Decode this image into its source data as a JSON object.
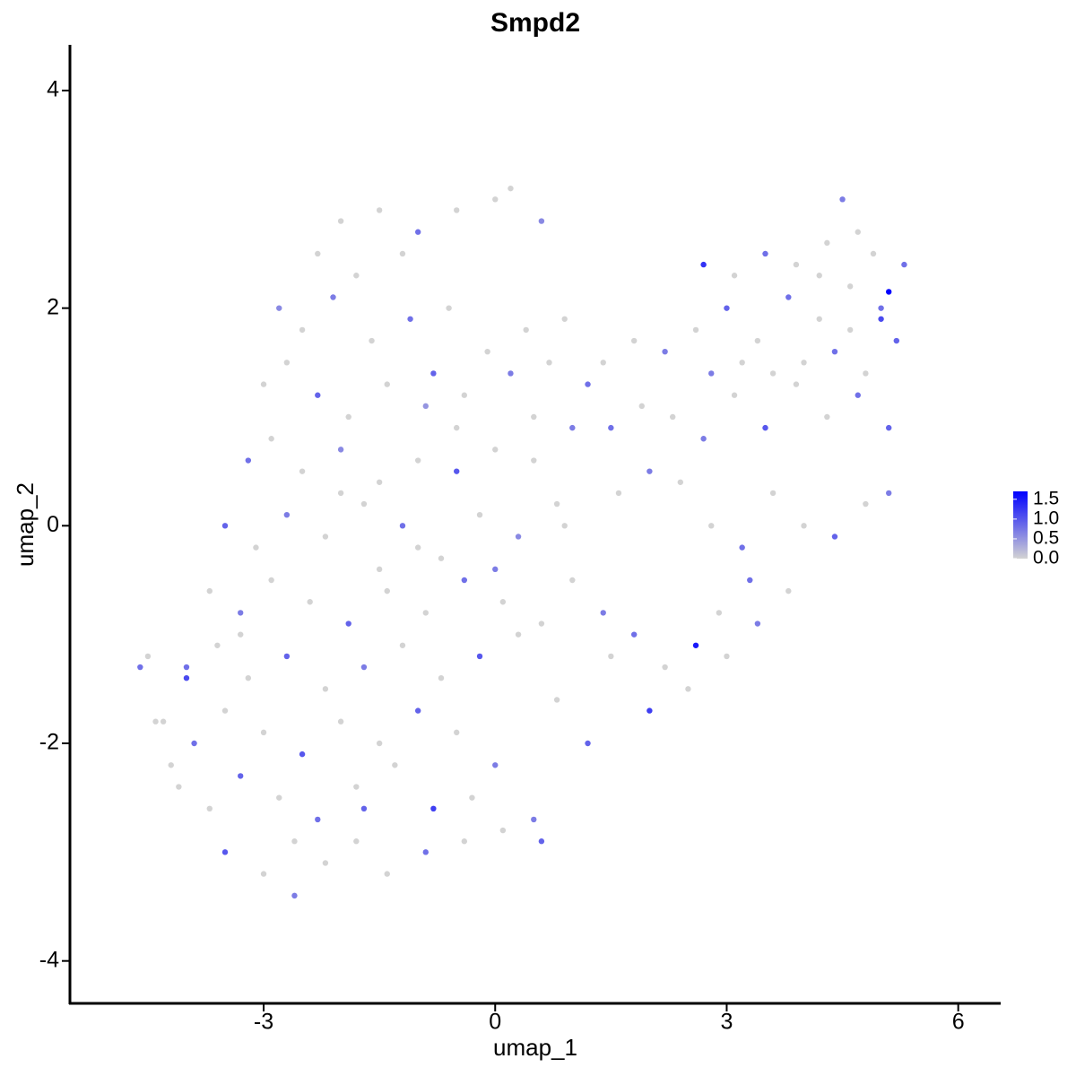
{
  "chart_data": {
    "type": "scatter",
    "title": "Smpd2",
    "x_label": "umap_1",
    "y_label": "umap_2",
    "xlim": [
      -5.51,
      6.55
    ],
    "ylim": [
      -4.39,
      4.42
    ],
    "xticks": [
      -3,
      0,
      3,
      6
    ],
    "yticks": [
      -4,
      -2,
      0,
      2,
      4
    ],
    "low_color": "#d3d3d3",
    "high_color": "#0000ff",
    "colorbar": {
      "lim": [
        0,
        1.7
      ],
      "ticks": [
        {
          "value": 0,
          "label": "0.0"
        },
        {
          "value": 0.5,
          "label": "0.5"
        },
        {
          "value": 1.0,
          "label": "1.0"
        },
        {
          "value": 1.5,
          "label": "1.5"
        }
      ]
    },
    "x": [
      -2.3,
      -2.0,
      -1.5,
      -1.0,
      -0.5,
      0.0,
      0.2,
      0.6,
      -1.8,
      -1.2,
      -2.8,
      -2.5,
      -2.1,
      -1.6,
      -1.1,
      -0.6,
      -0.1,
      0.4,
      0.9,
      -0.8,
      -3.0,
      -2.7,
      -2.3,
      -1.9,
      -1.4,
      -0.9,
      -0.4,
      0.2,
      0.7,
      1.2,
      -3.2,
      -2.9,
      -2.5,
      -2.0,
      -1.5,
      -1.0,
      -0.5,
      0.0,
      0.5,
      1.0,
      -3.5,
      -3.1,
      -2.7,
      -2.2,
      -1.7,
      -1.2,
      -0.7,
      -0.2,
      0.3,
      0.8,
      -3.7,
      -3.3,
      -2.9,
      -2.4,
      -1.9,
      -1.4,
      -0.9,
      -0.4,
      0.1,
      0.6,
      -4.0,
      -3.6,
      -3.2,
      -2.7,
      -2.2,
      -1.7,
      -1.2,
      -0.7,
      -0.2,
      0.3,
      -4.3,
      -3.9,
      -3.5,
      -3.0,
      -2.5,
      -2.0,
      -1.5,
      -1.0,
      -0.5,
      0.0,
      -4.1,
      -3.7,
      -3.3,
      -2.8,
      -2.3,
      -1.8,
      -1.3,
      -0.8,
      -0.3,
      0.5,
      -3.5,
      -3.0,
      -2.6,
      -2.2,
      -1.8,
      -1.4,
      -0.9,
      -0.4,
      0.1,
      0.6,
      -4.6,
      -4.5,
      -4.4,
      -4.2,
      -4.0,
      1.0,
      1.4,
      0.8,
      1.2,
      1.5,
      1.8,
      2.2,
      2.6,
      3.0,
      3.4,
      3.8,
      2.0,
      2.5,
      2.9,
      3.3,
      1.6,
      2.0,
      2.4,
      2.8,
      3.2,
      3.6,
      4.0,
      4.4,
      4.8,
      5.1,
      1.5,
      1.9,
      2.3,
      2.7,
      3.1,
      3.5,
      3.9,
      4.3,
      4.7,
      5.1,
      1.4,
      1.8,
      2.2,
      2.6,
      3.0,
      3.4,
      3.8,
      4.2,
      4.6,
      5.0,
      2.7,
      3.1,
      3.5,
      3.9,
      4.3,
      4.5,
      4.7,
      4.9,
      5.1,
      5.3,
      4.0,
      4.4,
      4.8,
      5.2,
      3.6,
      3.2,
      2.8,
      4.6,
      5.0,
      4.2,
      -2.0,
      -1.0,
      0.0,
      0.9,
      -1.5,
      -0.5,
      0.5,
      -2.6,
      -3.3,
      -1.7
    ],
    "y": [
      2.5,
      2.8,
      2.9,
      2.7,
      2.9,
      3.0,
      3.1,
      2.8,
      2.3,
      2.5,
      2.0,
      1.8,
      2.1,
      1.7,
      1.9,
      2.0,
      1.6,
      1.8,
      1.9,
      1.4,
      1.3,
      1.5,
      1.2,
      1.0,
      1.3,
      1.1,
      1.2,
      1.4,
      1.5,
      1.3,
      0.6,
      0.8,
      0.5,
      0.7,
      0.4,
      0.6,
      0.5,
      0.7,
      0.6,
      0.9,
      0.0,
      -0.2,
      0.1,
      -0.1,
      0.2,
      0.0,
      -0.3,
      0.1,
      -0.1,
      0.2,
      -0.6,
      -0.8,
      -0.5,
      -0.7,
      -0.9,
      -0.6,
      -0.8,
      -0.5,
      -0.7,
      -0.9,
      -1.3,
      -1.1,
      -1.4,
      -1.2,
      -1.5,
      -1.3,
      -1.1,
      -1.4,
      -1.2,
      -1.0,
      -1.8,
      -2.0,
      -1.7,
      -1.9,
      -2.1,
      -1.8,
      -2.0,
      -1.7,
      -1.9,
      -2.2,
      -2.4,
      -2.6,
      -2.3,
      -2.5,
      -2.7,
      -2.4,
      -2.2,
      -2.6,
      -2.5,
      -2.7,
      -3.0,
      -3.2,
      -3.4,
      -3.1,
      -2.9,
      -3.2,
      -3.0,
      -2.9,
      -2.8,
      -2.9,
      -1.3,
      -1.2,
      -1.8,
      -2.2,
      -1.4,
      -0.5,
      -0.8,
      -1.6,
      -2.0,
      -1.2,
      -1.0,
      -1.3,
      -1.1,
      -1.2,
      -0.9,
      -0.6,
      -1.7,
      -1.5,
      -0.8,
      -0.5,
      0.3,
      0.5,
      0.4,
      0.0,
      -0.2,
      0.3,
      0.0,
      -0.1,
      0.2,
      0.3,
      0.9,
      1.1,
      1.0,
      0.8,
      1.2,
      0.9,
      1.3,
      1.0,
      1.2,
      0.9,
      1.5,
      1.7,
      1.6,
      1.8,
      2.0,
      1.7,
      2.1,
      1.9,
      1.8,
      1.9,
      2.4,
      2.3,
      2.5,
      2.4,
      2.6,
      3.0,
      2.7,
      2.5,
      2.15,
      2.4,
      1.5,
      1.6,
      1.4,
      1.7,
      1.4,
      1.5,
      1.4,
      2.2,
      2.0,
      2.3,
      0.3,
      -0.2,
      -0.4,
      0.0,
      -0.4,
      0.9,
      1.0,
      -2.9,
      -1.0,
      -2.6
    ],
    "values": [
      0,
      0,
      0,
      0.8,
      0,
      0,
      0,
      0.6,
      0,
      0,
      0.6,
      0,
      0.7,
      0,
      0.8,
      0,
      0,
      0,
      0,
      0.9,
      0,
      0,
      0.9,
      0,
      0,
      0.5,
      0,
      0.7,
      0,
      0.8,
      0.8,
      0,
      0,
      0.6,
      0,
      0,
      1.0,
      0,
      0,
      0.7,
      0.9,
      0,
      0.7,
      0,
      0,
      0.8,
      0,
      0,
      0.6,
      0,
      0,
      0.7,
      0,
      0,
      0.9,
      0,
      0,
      0.8,
      0,
      0,
      0.8,
      0,
      0,
      0.9,
      0,
      0.7,
      0,
      0,
      1.0,
      0,
      0,
      0.8,
      0,
      0,
      1.0,
      0,
      0,
      0.9,
      0,
      0.7,
      0,
      0,
      0.9,
      0,
      0.8,
      0,
      0,
      1.2,
      0,
      0.7,
      1.0,
      0,
      0.7,
      0,
      0,
      0,
      0.8,
      0,
      0,
      0.9,
      0.8,
      0,
      0,
      0,
      1.1,
      0,
      0.7,
      0,
      0.9,
      0,
      0.8,
      0,
      1.5,
      0,
      0.7,
      0,
      1.2,
      0,
      0,
      0.8,
      0,
      0.7,
      0,
      0,
      0.8,
      0,
      0,
      0.9,
      0,
      0.7,
      0.8,
      0,
      0,
      0.7,
      0,
      1.0,
      0,
      0,
      0.8,
      0.9,
      0,
      0,
      0.7,
      0,
      0.9,
      0,
      0.8,
      0,
      0,
      1.1,
      1.3,
      0,
      0.8,
      0,
      0,
      0.7,
      0,
      0,
      1.7,
      0.8,
      0,
      0.8,
      0,
      0.9,
      0,
      0,
      0.7,
      0,
      0.8,
      0,
      0,
      0,
      0.7,
      0,
      0,
      0,
      0,
      0,
      0,
      0.9
    ]
  }
}
